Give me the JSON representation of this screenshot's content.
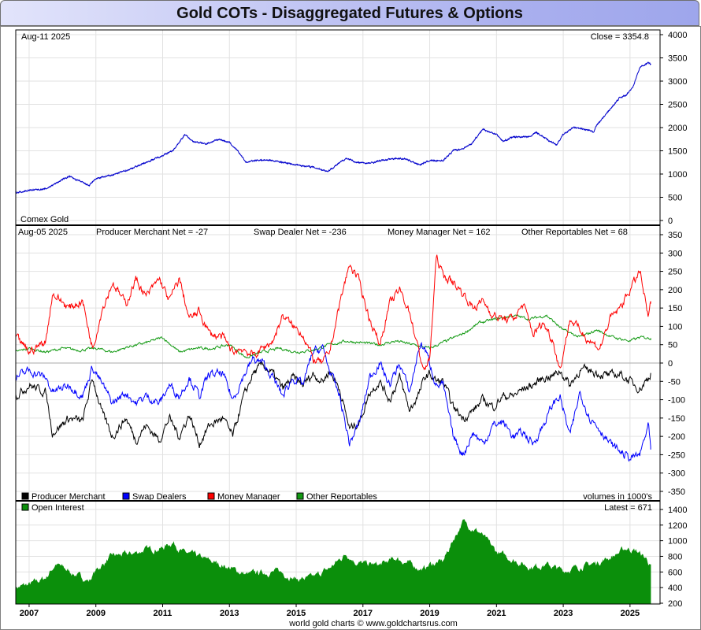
{
  "title": "Gold COTs - Disaggregated Futures & Options",
  "footer": "world gold charts © www.goldchartsrus.com",
  "colors": {
    "price": "#0000cc",
    "producer": "#000000",
    "swap": "#0000ff",
    "money": "#ff0000",
    "other": "#119911",
    "oi": "#0b8f0b",
    "grid": "#e2e2e2"
  },
  "chart_data": [
    {
      "type": "line",
      "name": "Comex Gold price",
      "date_label": "Aug-11  2025",
      "close_label": "Close = 3354.8",
      "instrument_label": "Comex Gold",
      "ylim": [
        0,
        4000
      ],
      "yticks": [
        0,
        500,
        1000,
        1500,
        2000,
        2500,
        3000,
        3500,
        4000
      ],
      "grid": true,
      "series": [
        {
          "name": "Comex Gold",
          "x": [
            2006.6,
            2007.0,
            2007.5,
            2008.0,
            2008.2,
            2008.8,
            2009.0,
            2009.5,
            2010.0,
            2010.5,
            2011.0,
            2011.3,
            2011.67,
            2011.9,
            2012.3,
            2012.7,
            2013.0,
            2013.3,
            2013.5,
            2013.8,
            2014.2,
            2014.6,
            2015.0,
            2015.5,
            2015.95,
            2016.5,
            2016.8,
            2017.2,
            2017.6,
            2018.0,
            2018.3,
            2018.7,
            2019.0,
            2019.4,
            2019.7,
            2020.0,
            2020.25,
            2020.6,
            2020.8,
            2021.0,
            2021.2,
            2021.5,
            2021.8,
            2022.0,
            2022.2,
            2022.5,
            2022.8,
            2023.0,
            2023.3,
            2023.7,
            2023.9,
            2024.0,
            2024.3,
            2024.7,
            2024.9,
            2025.1,
            2025.3,
            2025.55,
            2025.62
          ],
          "y": [
            600,
            650,
            680,
            880,
            950,
            750,
            900,
            980,
            1100,
            1250,
            1400,
            1500,
            1850,
            1700,
            1650,
            1750,
            1680,
            1450,
            1250,
            1300,
            1300,
            1250,
            1200,
            1150,
            1060,
            1340,
            1250,
            1230,
            1300,
            1340,
            1320,
            1200,
            1290,
            1290,
            1500,
            1550,
            1650,
            1970,
            1900,
            1860,
            1700,
            1800,
            1800,
            1800,
            1900,
            1750,
            1630,
            1850,
            2000,
            1950,
            1900,
            2050,
            2300,
            2650,
            2700,
            2900,
            3300,
            3400,
            3354.8
          ]
        }
      ]
    },
    {
      "type": "line",
      "name": "COT net positions",
      "date_label": "Aug-05  2025",
      "net_labels": [
        "Producer Merchant Net = -27",
        "Swap Dealer Net = -236",
        "Money Manager Net = 162",
        "Other Reportables Net = 68"
      ],
      "ylim": [
        -350,
        350
      ],
      "yticks": [
        -350,
        -300,
        -250,
        -200,
        -150,
        -100,
        -50,
        0,
        50,
        100,
        150,
        200,
        250,
        300,
        350
      ],
      "grid": true,
      "legend": [
        "Producer Merchant",
        "Swap Dealers",
        "Money Manager",
        "Other Reportables"
      ],
      "units_label": "volumes in 1000's",
      "series": [
        {
          "name": "Producer Merchant",
          "x": [
            2006.6,
            2007.0,
            2007.5,
            2007.7,
            2008.2,
            2008.6,
            2008.9,
            2009.2,
            2009.5,
            2009.9,
            2010.2,
            2010.5,
            2010.9,
            2011.2,
            2011.5,
            2011.8,
            2012.1,
            2012.4,
            2012.8,
            2013.1,
            2013.4,
            2013.7,
            2014.0,
            2014.3,
            2014.6,
            2014.9,
            2015.2,
            2015.5,
            2015.8,
            2016.0,
            2016.3,
            2016.6,
            2016.9,
            2017.2,
            2017.5,
            2017.8,
            2018.1,
            2018.4,
            2018.7,
            2018.85,
            2019.0,
            2019.2,
            2019.4,
            2019.7,
            2020.0,
            2020.3,
            2020.6,
            2020.9,
            2021.2,
            2021.5,
            2021.8,
            2022.1,
            2022.4,
            2022.7,
            2022.9,
            2023.2,
            2023.5,
            2023.8,
            2024.1,
            2024.4,
            2024.7,
            2025.0,
            2025.3,
            2025.55,
            2025.62
          ],
          "y": [
            -90,
            -60,
            -80,
            -190,
            -150,
            -160,
            -40,
            -140,
            -200,
            -150,
            -210,
            -170,
            -210,
            -150,
            -200,
            -140,
            -220,
            -170,
            -150,
            -200,
            -100,
            -30,
            -5,
            -30,
            -70,
            -40,
            -60,
            -30,
            -50,
            -20,
            -70,
            -180,
            -160,
            -80,
            -50,
            -100,
            -40,
            -130,
            -80,
            -40,
            -30,
            -50,
            -50,
            -120,
            -150,
            -130,
            -100,
            -120,
            -90,
            -90,
            -70,
            -60,
            -40,
            -35,
            -20,
            -60,
            -20,
            -20,
            -30,
            -35,
            -30,
            -50,
            -70,
            -40,
            -27
          ]
        },
        {
          "name": "Swap Dealers",
          "x": [
            2006.6,
            2007.0,
            2007.5,
            2007.7,
            2008.2,
            2008.6,
            2008.9,
            2009.2,
            2009.5,
            2009.9,
            2010.2,
            2010.5,
            2010.9,
            2011.2,
            2011.5,
            2011.8,
            2012.1,
            2012.4,
            2012.8,
            2013.1,
            2013.4,
            2013.7,
            2014.0,
            2014.3,
            2014.6,
            2014.9,
            2015.2,
            2015.5,
            2015.8,
            2016.0,
            2016.3,
            2016.6,
            2016.9,
            2017.2,
            2017.5,
            2017.8,
            2018.1,
            2018.4,
            2018.7,
            2018.85,
            2019.0,
            2019.2,
            2019.4,
            2019.7,
            2020.0,
            2020.3,
            2020.6,
            2020.9,
            2021.2,
            2021.5,
            2021.8,
            2022.1,
            2022.4,
            2022.7,
            2022.9,
            2023.2,
            2023.5,
            2023.8,
            2024.1,
            2024.4,
            2024.7,
            2025.0,
            2025.3,
            2025.55,
            2025.62
          ],
          "y": [
            -40,
            -20,
            -40,
            -80,
            -60,
            -90,
            -10,
            -60,
            -110,
            -80,
            -110,
            -90,
            -110,
            -60,
            -90,
            -40,
            -90,
            -30,
            -30,
            -100,
            -40,
            10,
            0,
            -40,
            -90,
            -40,
            -60,
            30,
            40,
            -20,
            -90,
            -220,
            -160,
            -40,
            0,
            -60,
            0,
            -80,
            50,
            40,
            0,
            -60,
            -60,
            -200,
            -250,
            -190,
            -220,
            -170,
            -160,
            -200,
            -190,
            -220,
            -170,
            -110,
            -90,
            -200,
            -80,
            -150,
            -180,
            -220,
            -240,
            -260,
            -250,
            -170,
            -236
          ]
        },
        {
          "name": "Money Manager",
          "x": [
            2006.6,
            2007.0,
            2007.5,
            2007.7,
            2008.2,
            2008.6,
            2008.9,
            2009.2,
            2009.5,
            2009.9,
            2010.2,
            2010.5,
            2010.9,
            2011.2,
            2011.5,
            2011.8,
            2012.1,
            2012.4,
            2012.8,
            2013.1,
            2013.4,
            2013.7,
            2014.0,
            2014.3,
            2014.6,
            2014.9,
            2015.2,
            2015.5,
            2015.8,
            2016.0,
            2016.3,
            2016.6,
            2016.9,
            2017.2,
            2017.5,
            2017.8,
            2018.1,
            2018.4,
            2018.7,
            2018.85,
            2019.0,
            2019.2,
            2019.4,
            2019.7,
            2020.0,
            2020.3,
            2020.6,
            2020.9,
            2021.2,
            2021.5,
            2021.8,
            2022.1,
            2022.4,
            2022.7,
            2022.9,
            2023.2,
            2023.5,
            2023.8,
            2024.1,
            2024.4,
            2024.7,
            2025.0,
            2025.3,
            2025.55,
            2025.62
          ],
          "y": [
            70,
            30,
            60,
            190,
            150,
            170,
            40,
            150,
            220,
            160,
            230,
            180,
            230,
            170,
            230,
            120,
            140,
            80,
            70,
            30,
            40,
            20,
            40,
            60,
            130,
            100,
            80,
            10,
            0,
            30,
            160,
            270,
            220,
            120,
            50,
            160,
            200,
            140,
            20,
            -20,
            10,
            290,
            240,
            220,
            190,
            150,
            170,
            130,
            120,
            120,
            160,
            80,
            110,
            60,
            -20,
            120,
            90,
            60,
            40,
            120,
            150,
            200,
            250,
            120,
            162
          ]
        },
        {
          "name": "Other Reportables",
          "x": [
            2006.6,
            2007.0,
            2007.5,
            2008.0,
            2008.5,
            2009.0,
            2009.5,
            2010.0,
            2010.5,
            2011.0,
            2011.5,
            2012.0,
            2012.5,
            2013.0,
            2013.5,
            2014.0,
            2014.5,
            2015.0,
            2015.5,
            2016.0,
            2016.5,
            2017.0,
            2017.5,
            2018.0,
            2018.5,
            2019.0,
            2019.5,
            2020.0,
            2020.5,
            2021.0,
            2021.5,
            2022.0,
            2022.5,
            2023.0,
            2023.5,
            2024.0,
            2024.5,
            2025.0,
            2025.3,
            2025.62
          ],
          "y": [
            30,
            40,
            30,
            40,
            35,
            40,
            30,
            45,
            55,
            70,
            30,
            40,
            40,
            50,
            15,
            30,
            40,
            30,
            35,
            50,
            60,
            55,
            50,
            60,
            50,
            40,
            60,
            80,
            110,
            120,
            130,
            120,
            130,
            90,
            70,
            90,
            70,
            60,
            70,
            68
          ]
        }
      ]
    },
    {
      "type": "area",
      "name": "Open Interest",
      "legend": [
        "Open Interest"
      ],
      "latest_label": "Latest = 671",
      "ylim": [
        200,
        1500
      ],
      "yticks": [
        200,
        400,
        600,
        800,
        1000,
        1200,
        1400
      ],
      "grid": true,
      "series": [
        {
          "name": "Open Interest",
          "x": [
            2006.6,
            2007.0,
            2007.5,
            2007.8,
            2008.2,
            2008.8,
            2009.0,
            2009.5,
            2010.0,
            2010.5,
            2011.0,
            2011.3,
            2011.6,
            2012.0,
            2012.5,
            2013.0,
            2013.5,
            2014.0,
            2014.5,
            2015.0,
            2015.5,
            2016.0,
            2016.5,
            2016.8,
            2017.0,
            2017.5,
            2018.0,
            2018.5,
            2018.8,
            2019.0,
            2019.4,
            2019.7,
            2020.0,
            2020.2,
            2020.5,
            2020.8,
            2021.0,
            2021.5,
            2022.0,
            2022.5,
            2023.0,
            2023.5,
            2024.0,
            2024.5,
            2024.9,
            2025.2,
            2025.5,
            2025.62
          ],
          "y": [
            400,
            430,
            520,
            700,
            600,
            480,
            610,
            800,
            820,
            880,
            900,
            980,
            850,
            800,
            720,
            650,
            560,
            590,
            600,
            500,
            520,
            640,
            830,
            720,
            700,
            680,
            770,
            680,
            620,
            690,
            730,
            1000,
            1240,
            1180,
            1100,
            950,
            850,
            750,
            660,
            690,
            610,
            660,
            710,
            800,
            900,
            860,
            760,
            671
          ]
        }
      ]
    },
    {
      "type": "axis",
      "name": "Shared x-axis (years)",
      "xlim": [
        2006.6,
        2025.9
      ],
      "xticks": [
        2007,
        2009,
        2011,
        2013,
        2015,
        2017,
        2019,
        2021,
        2023,
        2025
      ]
    }
  ]
}
